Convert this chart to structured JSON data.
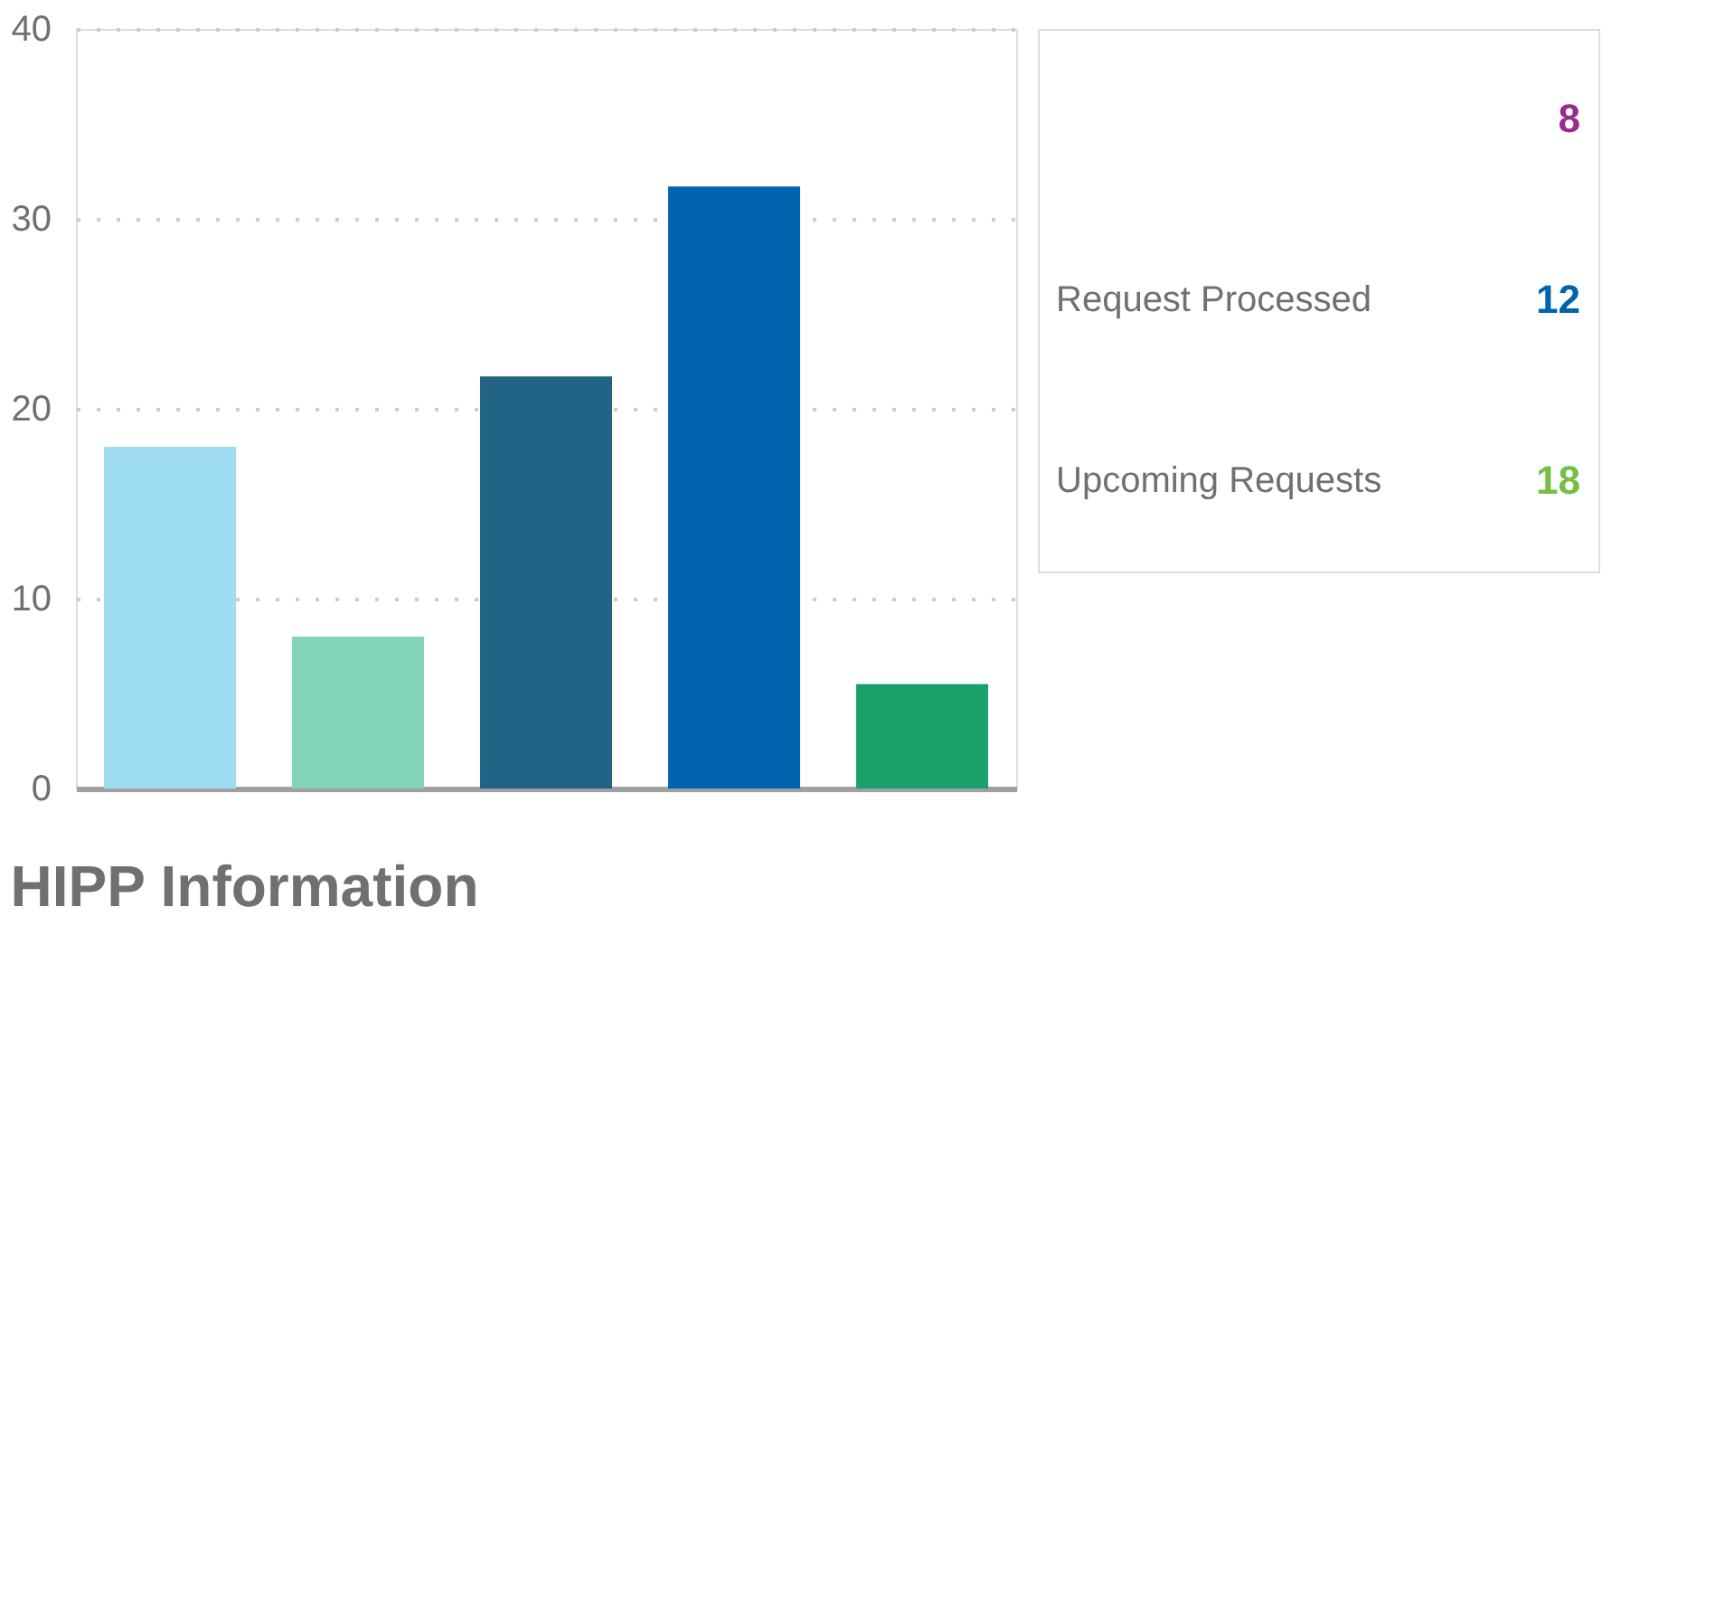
{
  "chart_data": [
    {
      "type": "bar",
      "title": "HIPP Information",
      "categories": [
        null,
        null,
        null,
        null,
        null
      ],
      "values": [
        18,
        8,
        21.7,
        31.7,
        5.5
      ],
      "colors": [
        "#9fddf0",
        "#82d4ba",
        "#216485",
        "#0063ae",
        "#19a06b"
      ],
      "ylim": [
        0,
        40
      ],
      "yticks": [
        0,
        10,
        20,
        30,
        40
      ],
      "grid": "y",
      "tick_labels": "y"
    },
    {
      "type": "other",
      "categories": [
        null,
        "Request Processed",
        "Upcoming Requests"
      ],
      "values": [
        8,
        12,
        18
      ],
      "colors": [
        "#9b2a8f",
        "#0063ae",
        "#74bf44"
      ],
      "data_labels": true
    }
  ]
}
